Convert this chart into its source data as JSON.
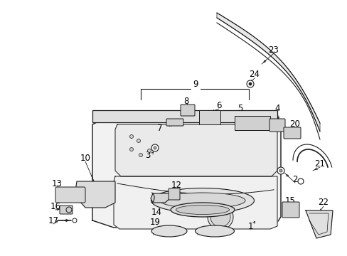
{
  "background_color": "#ffffff",
  "fig_width": 4.89,
  "fig_height": 3.6,
  "dpi": 100,
  "line_color": "#1a1a1a",
  "label_font_size": 8.5
}
